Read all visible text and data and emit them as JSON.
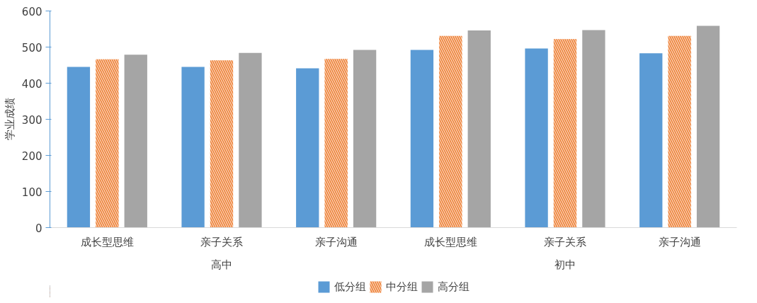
{
  "chart_data": {
    "type": "bar",
    "ylabel": "学业成绩",
    "categories": [
      "成长型思维",
      "亲子关系",
      "亲子沟通",
      "成长型思维",
      "亲子关系",
      "亲子沟通"
    ],
    "annotations": [
      "高中",
      "初中"
    ],
    "series": [
      {
        "name": "低分组",
        "color": "#5b9bd5",
        "values": [
          445,
          445,
          441,
          492,
          496,
          483
        ]
      },
      {
        "name": "中分组",
        "color": "#ed7d31",
        "values": [
          466,
          463,
          467,
          531,
          522,
          531
        ]
      },
      {
        "name": "高分组",
        "color": "#a5a5a5",
        "values": [
          479,
          484,
          492,
          546,
          547,
          559
        ]
      }
    ],
    "ylim": [
      0,
      600
    ],
    "yticks": [
      0,
      100,
      200,
      300,
      400,
      500,
      600
    ],
    "grid": false,
    "legend": "bottom"
  }
}
